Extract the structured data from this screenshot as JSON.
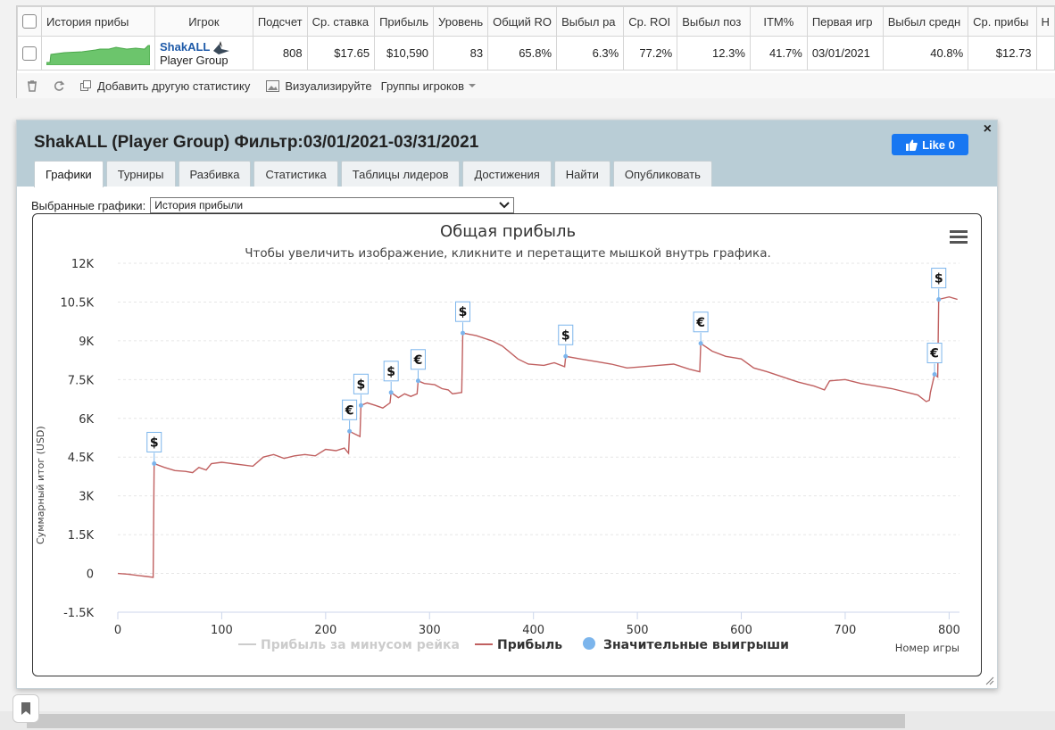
{
  "stats": {
    "headers": [
      "История прибы",
      "Игрок",
      "Подсчет",
      "Ср. ставка",
      "Прибыль",
      "Уровень",
      "Общий RO",
      "Выбыл ра",
      "Ср. ROI",
      "Выбыл поз",
      "ITM%",
      "Первая игр",
      "Выбыл средн",
      "Ср. прибы",
      "Н"
    ],
    "row": {
      "player_name": "ShakALL",
      "player_type": "Player Group",
      "count": "808",
      "avg_stake": "$17.65",
      "profit": "$10,590",
      "level": "83",
      "total_roi": "65.8%",
      "early_exit": "6.3%",
      "avg_roi": "77.2%",
      "late_exit": "12.3%",
      "itm": "41.7%",
      "first_game": "03/01/2021",
      "mid_exit": "40.8%",
      "avg_profit": "$12.73"
    }
  },
  "toolbar": {
    "add_stat": "Добавить другую статистику",
    "visualize": "Визуализируйте",
    "groups": "Группы игроков"
  },
  "popup": {
    "title": "ShakALL (Player Group) Фильтр:03/01/2021-03/31/2021",
    "like_label": "Like 0",
    "tabs": [
      "Графики",
      "Турниры",
      "Разбивка",
      "Статистика",
      "Таблицы лидеров",
      "Достижения",
      "Найти",
      "Опубликовать"
    ],
    "select_label": "Выбранные графики:",
    "select_value": "История прибыли"
  },
  "chart_data": {
    "type": "line",
    "title": "Общая прибыль",
    "subtitle": "Чтобы увеличить изображение, кликните и перетащите мышкой внутрь графика.",
    "xlabel": "Номер игры",
    "ylabel": "Суммарный итог (USD)",
    "xlim": [
      0,
      810
    ],
    "ylim": [
      -1500,
      12000
    ],
    "x_ticks": [
      "0",
      "100",
      "200",
      "300",
      "400",
      "500",
      "600",
      "700",
      "800"
    ],
    "y_ticks": [
      "12K",
      "10.5K",
      "9K",
      "7.5K",
      "6K",
      "4.5K",
      "3K",
      "1.5K",
      "0",
      "-1.5K"
    ],
    "y_tick_values": [
      12000,
      10500,
      9000,
      7500,
      6000,
      4500,
      3000,
      1500,
      0,
      -1500
    ],
    "legend": [
      "Прибыль за минусом рейка",
      "Прибыль",
      "Значительные выигрыши"
    ],
    "legend_position": "bottom",
    "series": [
      {
        "name": "Прибыль",
        "color": "#c06060",
        "points": [
          [
            0,
            0
          ],
          [
            10,
            -30
          ],
          [
            20,
            -80
          ],
          [
            28,
            -120
          ],
          [
            34,
            -150
          ],
          [
            35,
            4250
          ],
          [
            45,
            4100
          ],
          [
            55,
            3980
          ],
          [
            65,
            3950
          ],
          [
            72,
            3900
          ],
          [
            78,
            4100
          ],
          [
            85,
            4000
          ],
          [
            90,
            4250
          ],
          [
            100,
            4300
          ],
          [
            110,
            4250
          ],
          [
            120,
            4200
          ],
          [
            130,
            4150
          ],
          [
            140,
            4500
          ],
          [
            150,
            4600
          ],
          [
            160,
            4450
          ],
          [
            170,
            4550
          ],
          [
            180,
            4600
          ],
          [
            190,
            4550
          ],
          [
            200,
            4800
          ],
          [
            210,
            4750
          ],
          [
            218,
            4850
          ],
          [
            222,
            4650
          ],
          [
            223,
            5500
          ],
          [
            228,
            5400
          ],
          [
            233,
            5300
          ],
          [
            234,
            6500
          ],
          [
            240,
            6600
          ],
          [
            248,
            6500
          ],
          [
            255,
            6400
          ],
          [
            262,
            6600
          ],
          [
            263,
            7000
          ],
          [
            270,
            6800
          ],
          [
            276,
            6950
          ],
          [
            282,
            6850
          ],
          [
            288,
            6950
          ],
          [
            289,
            7450
          ],
          [
            295,
            7350
          ],
          [
            305,
            7300
          ],
          [
            312,
            7150
          ],
          [
            318,
            7100
          ],
          [
            322,
            6950
          ],
          [
            331,
            7000
          ],
          [
            332,
            9300
          ],
          [
            345,
            9200
          ],
          [
            360,
            9000
          ],
          [
            370,
            8800
          ],
          [
            385,
            8300
          ],
          [
            395,
            8100
          ],
          [
            410,
            8050
          ],
          [
            420,
            8150
          ],
          [
            430,
            8000
          ],
          [
            431,
            8400
          ],
          [
            445,
            8300
          ],
          [
            460,
            8200
          ],
          [
            475,
            8100
          ],
          [
            490,
            7950
          ],
          [
            505,
            8000
          ],
          [
            520,
            8050
          ],
          [
            535,
            8100
          ],
          [
            550,
            7900
          ],
          [
            560,
            7800
          ],
          [
            561,
            8900
          ],
          [
            572,
            8600
          ],
          [
            585,
            8400
          ],
          [
            600,
            8300
          ],
          [
            612,
            7950
          ],
          [
            625,
            7800
          ],
          [
            640,
            7600
          ],
          [
            655,
            7400
          ],
          [
            670,
            7250
          ],
          [
            680,
            7100
          ],
          [
            685,
            7450
          ],
          [
            700,
            7500
          ],
          [
            715,
            7350
          ],
          [
            730,
            7250
          ],
          [
            745,
            7150
          ],
          [
            760,
            7000
          ],
          [
            770,
            6900
          ],
          [
            778,
            6650
          ],
          [
            781,
            6700
          ],
          [
            782,
            7000
          ],
          [
            786,
            7700
          ],
          [
            789,
            7600
          ],
          [
            790,
            10600
          ],
          [
            800,
            10700
          ],
          [
            808,
            10600
          ]
        ]
      }
    ],
    "big_wins": [
      {
        "x": 35,
        "y": 4250,
        "label": "$"
      },
      {
        "x": 223,
        "y": 5500,
        "label": "€"
      },
      {
        "x": 234,
        "y": 6500,
        "label": "$"
      },
      {
        "x": 263,
        "y": 7000,
        "label": "$"
      },
      {
        "x": 289,
        "y": 7450,
        "label": "€"
      },
      {
        "x": 332,
        "y": 9300,
        "label": "$"
      },
      {
        "x": 431,
        "y": 8400,
        "label": "$"
      },
      {
        "x": 561,
        "y": 8900,
        "label": "€"
      },
      {
        "x": 786,
        "y": 7700,
        "label": "€"
      },
      {
        "x": 790,
        "y": 10600,
        "label": "$"
      }
    ],
    "grid": true
  },
  "colors": {
    "header_bg": "#b9cdd6",
    "profit_line": "#c06060",
    "big_win_marker": "#7cb5ec",
    "like_blue": "#1877f2",
    "player_link": "#1e5aa8"
  }
}
